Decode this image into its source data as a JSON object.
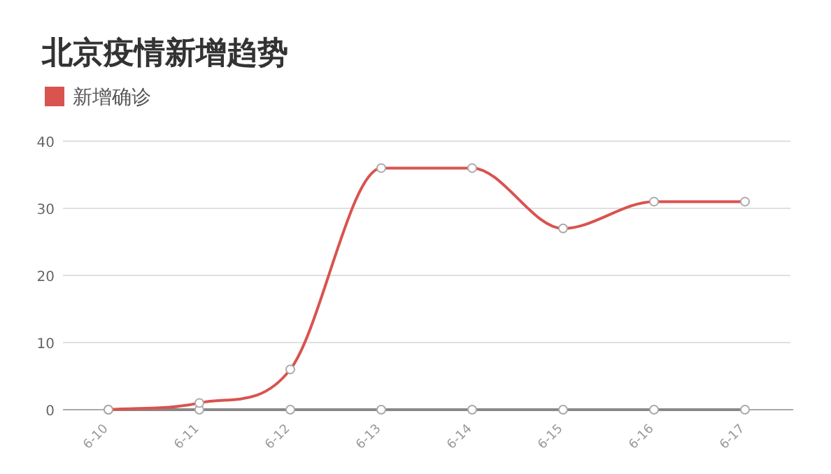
{
  "chart_data": {
    "type": "line",
    "title": "北京疫情新增趋势",
    "categories": [
      "6-10",
      "6-11",
      "6-12",
      "6-13",
      "6-14",
      "6-15",
      "6-16",
      "6-17"
    ],
    "series": [
      {
        "name": "新增确诊",
        "color": "#d9534f",
        "values": [
          0,
          1,
          6,
          36,
          36,
          27,
          31,
          31
        ]
      },
      {
        "color": "#888888",
        "values": [
          0,
          0,
          0,
          0,
          0,
          0,
          0,
          0
        ]
      }
    ],
    "ylim": [
      0,
      40
    ],
    "yticks": [
      0,
      10,
      20,
      30,
      40
    ],
    "grid": "y",
    "legend": "top left",
    "marker": "circle"
  }
}
